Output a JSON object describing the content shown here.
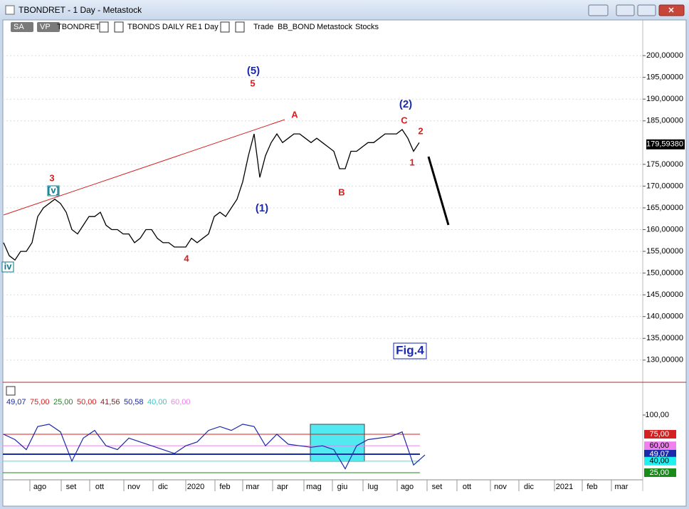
{
  "window": {
    "title": "TBONDRET - 1 Day - Metastock"
  },
  "toolbar": {
    "items": [
      "SA",
      "VP",
      "TBONDRET",
      "TBONDS DAILY RE",
      "1 Day",
      "Trade",
      "BB_BOND",
      "Metastock",
      "Stocks"
    ]
  },
  "chart_data": {
    "type": "line",
    "color": "#000000",
    "values": [
      157,
      154,
      153,
      155,
      155,
      157,
      163,
      165,
      166,
      167,
      166,
      164,
      160,
      159,
      161,
      163,
      163,
      164,
      161,
      160,
      160,
      159,
      159,
      157,
      158,
      160,
      160,
      158,
      157,
      157,
      156,
      156,
      156,
      158,
      157,
      158,
      159,
      163,
      164,
      163,
      165,
      167,
      171,
      177,
      182,
      172,
      177,
      180,
      182,
      180,
      181,
      182,
      182,
      181,
      180,
      181,
      180,
      179,
      178,
      174,
      174,
      178,
      178,
      179,
      180,
      180,
      181,
      182,
      182,
      182,
      183,
      181,
      178,
      180
    ],
    "ylim": [
      124.9,
      208.2
    ],
    "yticks": [
      {
        "value": 200,
        "label": "200,00000"
      },
      {
        "value": 195,
        "label": "195,00000"
      },
      {
        "value": 190,
        "label": "190,00000"
      },
      {
        "value": 185,
        "label": "185,00000"
      },
      {
        "value": 175,
        "label": "175,00000"
      },
      {
        "value": 170,
        "label": "170,00000"
      },
      {
        "value": 165,
        "label": "165,00000"
      },
      {
        "value": 160,
        "label": "160,00000"
      },
      {
        "value": 155,
        "label": "155,00000"
      },
      {
        "value": 150,
        "label": "150,00000"
      },
      {
        "value": 145,
        "label": "145,00000"
      },
      {
        "value": 140,
        "label": "140,00000"
      },
      {
        "value": 135,
        "label": "135,00000"
      },
      {
        "value": 130,
        "label": "130,00000"
      }
    ],
    "last_price": {
      "value": 179.5938,
      "label": "179,59380"
    },
    "x_labels": [
      "ago",
      "set",
      "ott",
      "nov",
      "dic",
      "2020",
      "feb",
      "mar",
      "apr",
      "mag",
      "giu",
      "lug",
      "ago",
      "set",
      "ott",
      "nov",
      "dic",
      "2021",
      "feb",
      "mar"
    ],
    "annotations": [
      {
        "text": "3",
        "color": "#d42020"
      },
      {
        "text": "[v]",
        "color": "#0a7a8a"
      },
      {
        "text": "iv",
        "color": "#0a7a8a"
      },
      {
        "text": "4",
        "color": "#d42020"
      },
      {
        "text": "(5)",
        "color": "#1a2aa8"
      },
      {
        "text": "5",
        "color": "#d42020"
      },
      {
        "text": "A",
        "color": "#d42020"
      },
      {
        "text": "(1)",
        "color": "#1a2aa8"
      },
      {
        "text": "B",
        "color": "#d42020"
      },
      {
        "text": "(2)",
        "color": "#1a2aa8"
      },
      {
        "text": "C",
        "color": "#d42020"
      },
      {
        "text": "2",
        "color": "#d42020"
      },
      {
        "text": "1",
        "color": "#d42020"
      },
      {
        "text": "Fig.4",
        "color": "#1a2aa8"
      }
    ]
  },
  "indicator": {
    "legend": [
      {
        "label": "49,07",
        "color": "#1a2aa8"
      },
      {
        "label": "75,00",
        "color": "#d42020"
      },
      {
        "label": "25,00",
        "color": "#1a8a1a"
      },
      {
        "label": "50,00",
        "color": "#d42020"
      },
      {
        "label": "41,56",
        "color": "#8b1a1a"
      },
      {
        "label": "50,58",
        "color": "#1a2aa8"
      },
      {
        "label": "40,00",
        "color": "#20d0d0"
      },
      {
        "label": "60,00",
        "color": "#f080f0"
      }
    ],
    "color": "#1a2aa8",
    "values": [
      75,
      68,
      55,
      85,
      88,
      78,
      40,
      70,
      80,
      60,
      55,
      70,
      65,
      60,
      55,
      50,
      60,
      65,
      80,
      85,
      80,
      88,
      85,
      60,
      75,
      62,
      60,
      58,
      60,
      55,
      30,
      60,
      68,
      70,
      72,
      78,
      35,
      48
    ],
    "ylim": [
      12,
      139.8
    ],
    "yticks": [
      {
        "value": 100,
        "label": "100,00"
      },
      {
        "value": 75,
        "label": "75,00"
      },
      {
        "value": 60,
        "label": "60,00"
      },
      {
        "value": 49.07,
        "label": "49,07"
      },
      {
        "value": 40,
        "label": "40,00"
      },
      {
        "value": 25,
        "label": "25,00"
      }
    ],
    "tick_colors": [
      null,
      "#d42020",
      "#f080f0",
      "#1a2aa8",
      "#20f0f0",
      "#1a8a1a"
    ]
  }
}
